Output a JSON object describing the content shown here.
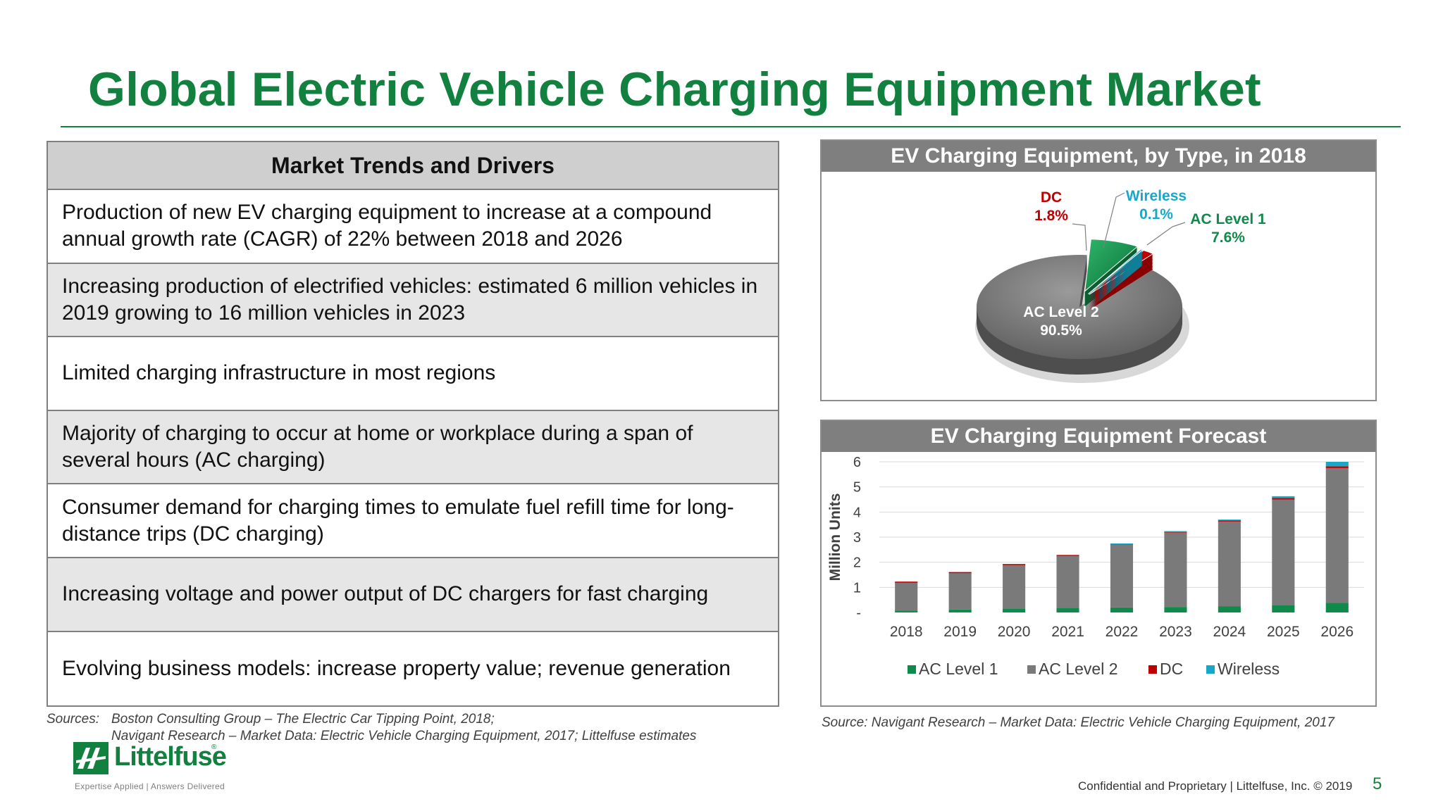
{
  "title": "Global Electric Vehicle Charging Equipment Market",
  "table": {
    "header": "Market Trends and Drivers",
    "rows": [
      "Production of new EV charging equipment to increase at a compound annual growth rate (CAGR) of 22% between 2018 and 2026",
      "Increasing production of electrified vehicles: estimated 6 million vehicles in 2019 growing to 16 million vehicles in 2023",
      "Limited charging infrastructure in most regions",
      "Majority of charging to occur at home or workplace during a span of several hours (AC charging)",
      "Consumer demand for charging times to emulate fuel refill time for long-distance trips (DC charging)",
      "Increasing voltage and power output of DC chargers for fast charging",
      "Evolving business models: increase property value; revenue generation"
    ]
  },
  "sources_left": {
    "label": "Sources:",
    "line1": "Boston Consulting Group – The Electric Car Tipping Point, 2018;",
    "line2": "Navigant Research – Market Data: Electric Vehicle Charging Equipment, 2017; Littelfuse estimates"
  },
  "source_right": "Source: Navigant Research – Market Data: Electric Vehicle Charging Equipment, 2017",
  "colors": {
    "brand_green": "#12813f",
    "ac_level_1": "#0e8a4a",
    "ac_level_2": "#7a7a7a",
    "dc": "#c00000",
    "wireless": "#17a8c8"
  },
  "chart_data": [
    {
      "type": "pie",
      "title": "EV Charging Equipment, by Type, in 2018",
      "slices": [
        {
          "label": "AC Level 2",
          "value_label": "90.5%",
          "value": 90.5
        },
        {
          "label": "AC Level 1",
          "value_label": "7.6%",
          "value": 7.6
        },
        {
          "label": "DC",
          "value_label": "1.8%",
          "value": 1.8
        },
        {
          "label": "Wireless",
          "value_label": "0.1%",
          "value": 0.1
        }
      ]
    },
    {
      "type": "bar",
      "stacked": true,
      "title": "EV Charging Equipment Forecast",
      "ylabel": "Million Units",
      "ylim": [
        0,
        6
      ],
      "yticks": [
        "-",
        "1",
        "2",
        "3",
        "4",
        "5",
        "6"
      ],
      "categories": [
        "2018",
        "2019",
        "2020",
        "2021",
        "2022",
        "2023",
        "2024",
        "2025",
        "2026"
      ],
      "series": [
        {
          "name": "AC Level 1",
          "values": [
            0.08,
            0.12,
            0.16,
            0.18,
            0.2,
            0.22,
            0.25,
            0.3,
            0.38
          ]
        },
        {
          "name": "AC Level 2",
          "values": [
            1.12,
            1.46,
            1.74,
            2.07,
            2.5,
            2.96,
            3.37,
            4.2,
            5.37
          ]
        },
        {
          "name": "DC",
          "values": [
            0.03,
            0.03,
            0.03,
            0.04,
            0.04,
            0.05,
            0.05,
            0.06,
            0.07
          ]
        },
        {
          "name": "Wireless",
          "values": [
            0.0,
            0.0,
            0.0,
            0.0,
            0.01,
            0.01,
            0.03,
            0.07,
            0.18
          ]
        }
      ],
      "legend": "bottom",
      "grid": true
    }
  ],
  "logo": {
    "word": "Littelfuse",
    "reg": "®",
    "tagline": "Expertise Applied | Answers Delivered"
  },
  "footer": {
    "confidential": "Confidential and Proprietary | Littelfuse, Inc. © 2019",
    "page_number": "5"
  }
}
